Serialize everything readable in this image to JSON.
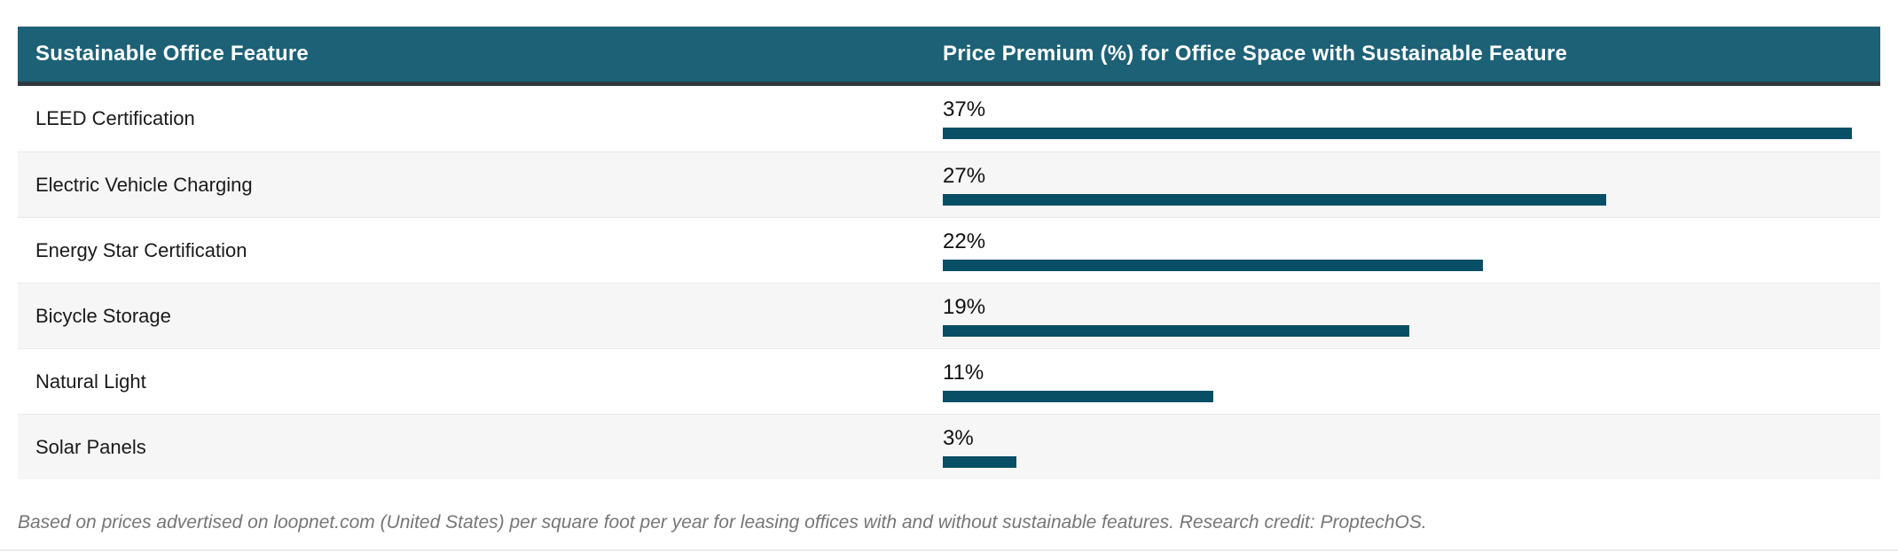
{
  "colors": {
    "header_bg": "#1d6177",
    "header_text": "#ffffff",
    "header_border": "#2e3a40",
    "bar": "#084e64",
    "row_alt_bg": "#f6f6f6",
    "row_separator": "#e9e9e9",
    "label_text": "#1a1a1a",
    "footnote_text": "#767676"
  },
  "table": {
    "columns": [
      {
        "label": "Sustainable Office Feature"
      },
      {
        "label": "Price Premium (%) for Office Space with Sustainable Feature"
      }
    ],
    "rows": [
      {
        "feature": "LEED Certification",
        "value": 37,
        "value_label": "37%"
      },
      {
        "feature": "Electric Vehicle Charging",
        "value": 27,
        "value_label": "27%"
      },
      {
        "feature": "Energy Star Certification",
        "value": 22,
        "value_label": "22%"
      },
      {
        "feature": "Bicycle Storage",
        "value": 19,
        "value_label": "19%"
      },
      {
        "feature": "Natural Light",
        "value": 11,
        "value_label": "11%"
      },
      {
        "feature": "Solar Panels",
        "value": 3,
        "value_label": "3%"
      }
    ]
  },
  "footnote": "Based on prices advertised on loopnet.com (United States) per square foot per year for leasing offices with and without sustainable features. Research credit: ProptechOS.",
  "chart_data": {
    "type": "bar",
    "orientation": "horizontal",
    "title": "",
    "categories": [
      "LEED Certification",
      "Electric Vehicle Charging",
      "Energy Star Certification",
      "Bicycle Storage",
      "Natural Light",
      "Solar Panels"
    ],
    "values": [
      37,
      27,
      22,
      19,
      11,
      3
    ],
    "value_labels": [
      "37%",
      "27%",
      "22%",
      "19%",
      "11%",
      "3%"
    ],
    "xlabel": "Price Premium (%) for Office Space with Sustainable Feature",
    "ylabel": "Sustainable Office Feature",
    "xlim": [
      0,
      37
    ],
    "grid": false,
    "legend": false,
    "bar_color": "#084e64"
  }
}
